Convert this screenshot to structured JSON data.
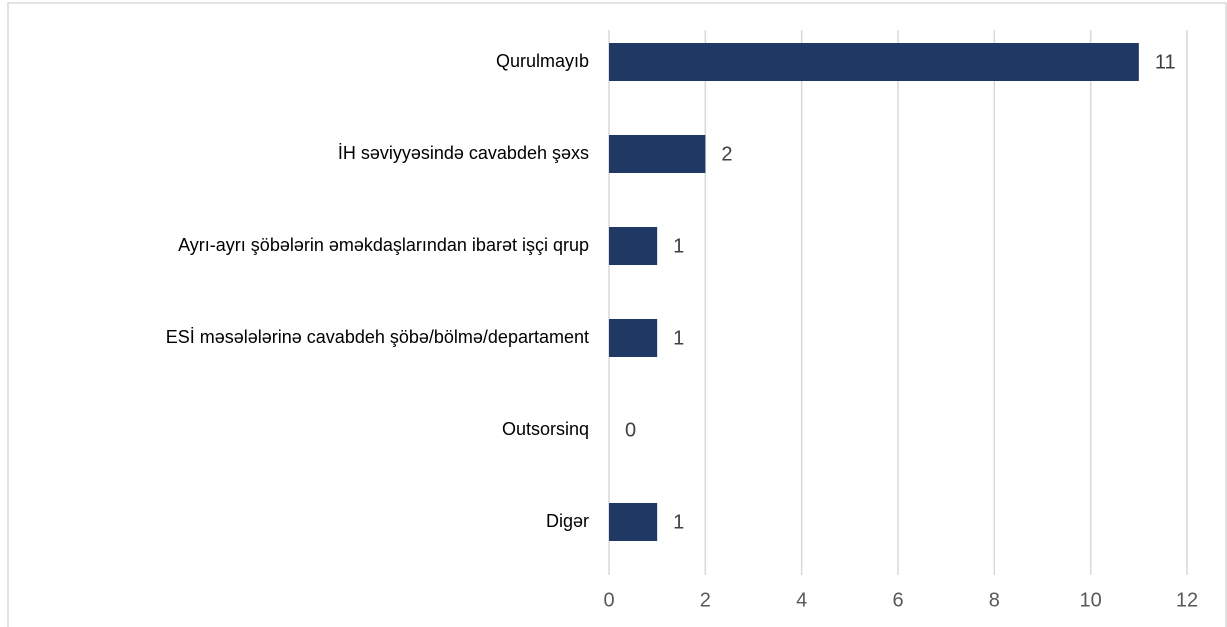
{
  "chart_data": {
    "type": "hbar",
    "categories": [
      "Qurulmayıb",
      "İH səviyyəsində cavabdeh şəxs",
      "Ayrı-ayrı şöbələrin əməkdaşlarından ibarət işçi qrup",
      "ESİ məsələlərinə cavabdeh şöbə/bölmə/departament",
      "Outsorsinq",
      "Digər"
    ],
    "values": [
      11,
      2,
      1,
      1,
      0,
      1
    ],
    "color": "#203864",
    "xlim": [
      0,
      12
    ],
    "xticks": [
      0,
      2,
      4,
      6,
      8,
      10,
      12
    ],
    "grid": true
  }
}
